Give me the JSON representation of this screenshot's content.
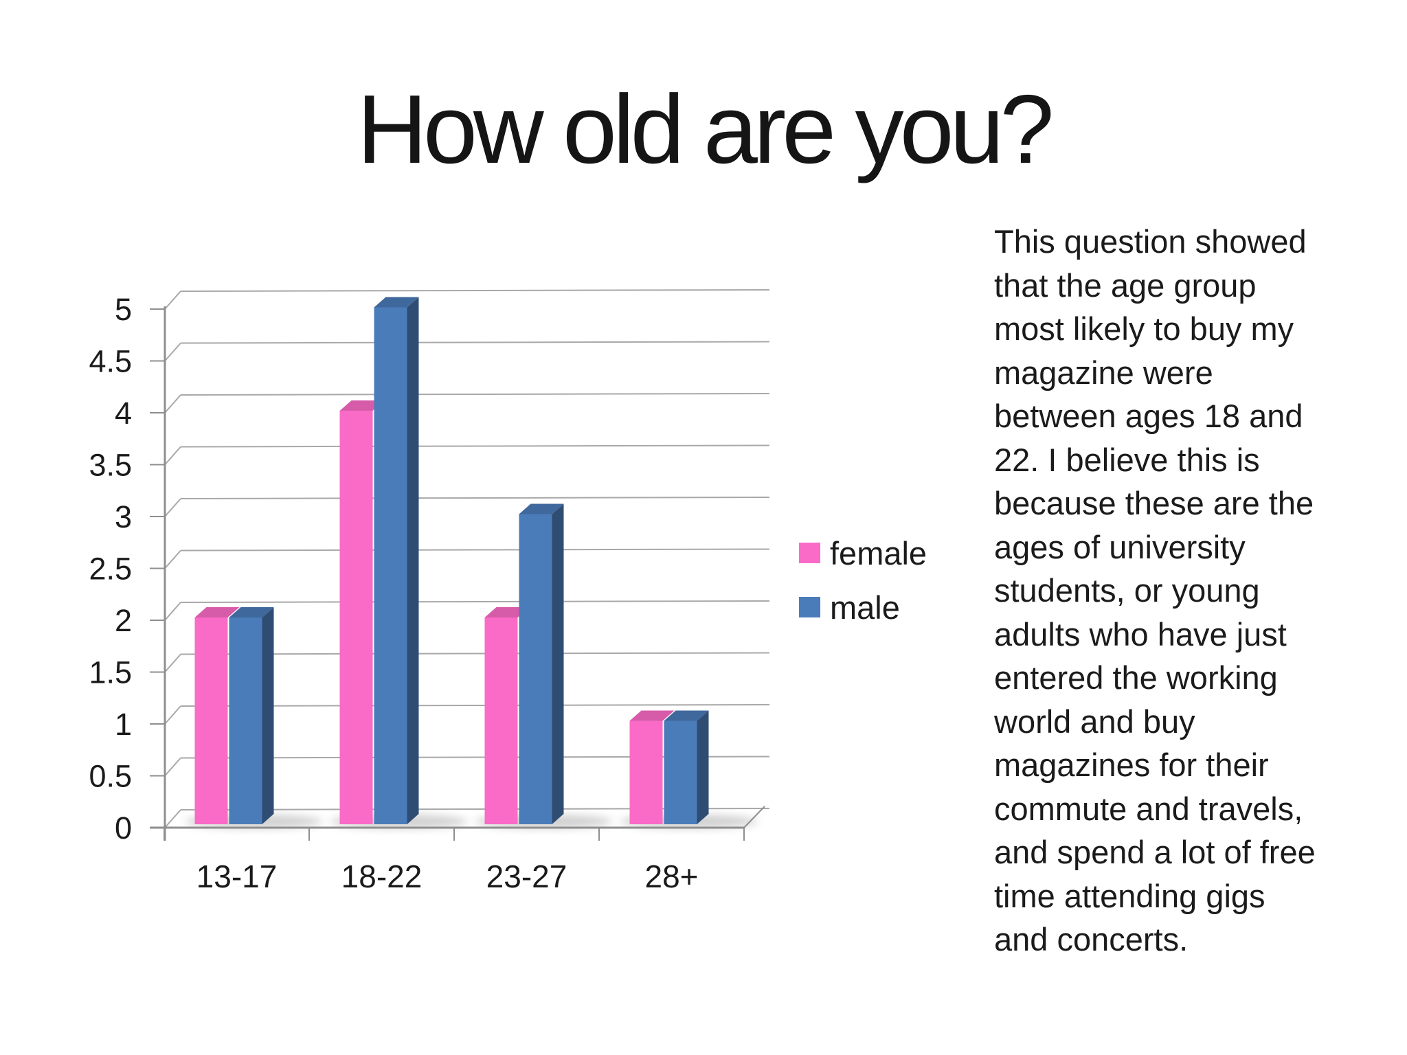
{
  "page": {
    "background": "#ffffff",
    "text_color": "#1b1b1b"
  },
  "title": "How old are you?",
  "chart_data": {
    "type": "bar",
    "effect": "3d",
    "title": "",
    "xlabel": "",
    "ylabel": "",
    "categories": [
      "13-17",
      "18-22",
      "23-27",
      "28+"
    ],
    "series": [
      {
        "name": "female",
        "color": "#f96bc6",
        "values": [
          2,
          4,
          2,
          1
        ]
      },
      {
        "name": "male",
        "color": "#4b7cba",
        "values": [
          2,
          5,
          3,
          1
        ]
      }
    ],
    "ylim": [
      0,
      5
    ],
    "ytick_step": 0.5,
    "ytick_labels": [
      "0",
      "0.5",
      "1",
      "1.5",
      "2",
      "2.5",
      "3",
      "3.5",
      "4",
      "4.5",
      "5"
    ],
    "grid": true,
    "legend_position": "right",
    "grid_color": "#a8a8a8",
    "axis_color": "#8f8f8f",
    "label_color": "#1a1a1a"
  },
  "paragraph": {
    "lines": [
      "This question showed",
      "that the age group",
      "most likely to buy my",
      "magazine were",
      "between ages 18 and",
      "22. I believe this is",
      "because these are the",
      "ages of university",
      "students, or young",
      "adults who have just",
      "entered the working",
      "world and buy",
      "magazines for their",
      "commute and travels,",
      "and spend a lot of free",
      "time attending gigs",
      "and concerts."
    ]
  }
}
